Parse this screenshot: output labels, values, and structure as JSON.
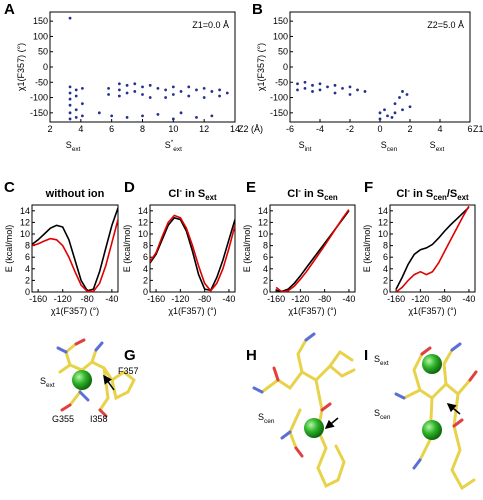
{
  "chart_data": [
    {
      "type": "scatter",
      "label": "A",
      "annotation": "Z1=0.0 Å",
      "xlabel": "Z2 (Å)",
      "ylabel": "χ1(F357) (°)",
      "xlim": [
        2,
        14
      ],
      "xticks": [
        2,
        4,
        6,
        8,
        10,
        12,
        14
      ],
      "ylim": [
        -180,
        180
      ],
      "yticks": [
        -150,
        -100,
        -50,
        0,
        50,
        100,
        150
      ],
      "color": "#23318f",
      "region_labels": [
        {
          "value": 3.5,
          "text": [
            {
              "text": "S"
            },
            {
              "text": "ext",
              "script": "sub"
            }
          ]
        },
        {
          "value": 10,
          "text": [
            {
              "text": "S"
            },
            {
              "text": "*",
              "script": "sup"
            },
            {
              "text": "ext",
              "script": "sub"
            }
          ]
        }
      ],
      "x": [
        3.3,
        3.3,
        3.3,
        3.3,
        3.3,
        3.3,
        3.3,
        3.7,
        3.7,
        3.7,
        3.7,
        4.1,
        4.1,
        4.1,
        5.2,
        5.8,
        5.8,
        6.0,
        6.5,
        6.5,
        6.5,
        7.0,
        7.0,
        7.0,
        7.5,
        7.5,
        8.0,
        8.0,
        8.0,
        8.5,
        8.5,
        9.0,
        9.0,
        9.5,
        9.5,
        10.0,
        10.0,
        10.0,
        10.5,
        10.5,
        11.0,
        11.0,
        11.5,
        11.5,
        12.0,
        12.0,
        12.5,
        12.5,
        13.0,
        13.0,
        13.5
      ],
      "y": [
        160,
        -65,
        -85,
        -105,
        -125,
        -150,
        -170,
        -75,
        -95,
        -140,
        -165,
        -70,
        -120,
        -160,
        -150,
        -70,
        -90,
        -160,
        -55,
        -75,
        -95,
        -60,
        -85,
        -165,
        -55,
        -80,
        -65,
        -90,
        -160,
        -60,
        -100,
        -70,
        -155,
        -75,
        -100,
        -65,
        -90,
        -170,
        -80,
        -150,
        -65,
        -95,
        -75,
        -165,
        -70,
        -100,
        -80,
        -160,
        -75,
        -95,
        -85
      ]
    },
    {
      "type": "scatter",
      "label": "B",
      "annotation": "Z2=5.0 Å",
      "xlabel": "Z1 (Å)",
      "ylabel": "χ1(F357) (°)",
      "xlim": [
        -6,
        6
      ],
      "xticks": [
        -6,
        -4,
        -2,
        0,
        2,
        4,
        6
      ],
      "ylim": [
        -180,
        180
      ],
      "yticks": [
        -150,
        -100,
        -50,
        0,
        50,
        100,
        150
      ],
      "color": "#23318f",
      "region_labels": [
        {
          "value": -5,
          "text": [
            {
              "text": "S"
            },
            {
              "text": "int",
              "script": "sub"
            }
          ]
        },
        {
          "value": 0.6,
          "text": [
            {
              "text": "S"
            },
            {
              "text": "cen",
              "script": "sub"
            }
          ]
        },
        {
          "value": 3.8,
          "text": [
            {
              "text": "S"
            },
            {
              "text": "ext",
              "script": "sub"
            }
          ]
        }
      ],
      "x": [
        -5.5,
        -5.5,
        -5,
        -5,
        -4.5,
        -4.5,
        -4,
        -4,
        -3.5,
        -3,
        -3,
        -2.5,
        -2,
        -2,
        -1.5,
        -1,
        0,
        0,
        0.3,
        0.5,
        0.8,
        1,
        1,
        1.3,
        1.5,
        1.5,
        1.8,
        2
      ],
      "y": [
        -55,
        -75,
        -50,
        -70,
        -60,
        -80,
        -55,
        -75,
        -65,
        -60,
        -85,
        -70,
        -65,
        -90,
        -75,
        -80,
        -150,
        -170,
        -140,
        -160,
        -165,
        -120,
        -150,
        -100,
        -80,
        -140,
        -90,
        -130
      ]
    },
    {
      "type": "line",
      "label": "C",
      "title": "without ion",
      "xlabel": "χ1(F357) (°)",
      "ylabel": "E (kcal/mol)",
      "xlim": [
        -170,
        -30
      ],
      "xticks": [
        -160,
        -120,
        -80,
        -40
      ],
      "ylim": [
        0,
        15
      ],
      "yticks": [
        0,
        2,
        4,
        6,
        8,
        10,
        12,
        14
      ],
      "x": [
        -170,
        -160,
        -150,
        -140,
        -130,
        -120,
        -110,
        -100,
        -90,
        -80,
        -70,
        -60,
        -50,
        -40,
        -30
      ],
      "series": [
        {
          "color": "#000000",
          "values": [
            8.2,
            9.0,
            10.0,
            11.0,
            11.5,
            11.2,
            9.0,
            5.5,
            2.0,
            0.2,
            0.5,
            3.5,
            7.5,
            11.5,
            14.5
          ]
        },
        {
          "color": "#e00000",
          "values": [
            8.0,
            8.3,
            8.8,
            9.2,
            9.0,
            8.0,
            6.0,
            3.5,
            1.2,
            0.1,
            0.1,
            1.5,
            4.5,
            8.5,
            12.5
          ]
        }
      ]
    },
    {
      "type": "line",
      "label": "D",
      "title": [
        {
          "text": "Cl"
        },
        {
          "text": "-",
          "script": "sup"
        },
        {
          "text": " in S"
        },
        {
          "text": "ext",
          "script": "sub"
        }
      ],
      "xlabel": "χ1(F357) (°)",
      "ylabel": "E (kcal/mol)",
      "xlim": [
        -170,
        -30
      ],
      "xticks": [
        -160,
        -120,
        -80,
        -40
      ],
      "ylim": [
        0,
        15
      ],
      "yticks": [
        0,
        2,
        4,
        6,
        8,
        10,
        12,
        14
      ],
      "x": [
        -170,
        -160,
        -150,
        -140,
        -130,
        -120,
        -110,
        -100,
        -90,
        -80,
        -70,
        -60,
        -50,
        -40,
        -30
      ],
      "series": [
        {
          "color": "#000000",
          "values": [
            5.0,
            6.5,
            9.0,
            11.5,
            12.8,
            12.5,
            10.5,
            7.0,
            3.0,
            0.5,
            0.3,
            2.5,
            5.5,
            9.0,
            12.5
          ]
        },
        {
          "color": "#e00000",
          "values": [
            5.2,
            6.8,
            9.5,
            12.0,
            13.2,
            12.8,
            11.0,
            8.0,
            4.5,
            1.5,
            0.2,
            1.5,
            4.0,
            7.5,
            11.5
          ]
        }
      ]
    },
    {
      "type": "line",
      "label": "E",
      "title": [
        {
          "text": "Cl"
        },
        {
          "text": "-",
          "script": "sup"
        },
        {
          "text": " in S"
        },
        {
          "text": "cen",
          "script": "sub"
        }
      ],
      "xlabel": "χ1(F357) (°)",
      "ylabel": "E (kcal/mol)",
      "xlim": [
        -170,
        -30
      ],
      "xticks": [
        -160,
        -120,
        -80,
        -40
      ],
      "ylim": [
        0,
        15
      ],
      "yticks": [
        0,
        2,
        4,
        6,
        8,
        10,
        12,
        14
      ],
      "x": [
        -170,
        -160,
        -150,
        -140,
        -130,
        -120,
        -110,
        -100,
        -90,
        -80,
        -70,
        -60,
        -50,
        -40,
        -30
      ],
      "series": [
        {
          "color": "#000000",
          "values": [
            null,
            0.3,
            0.1,
            0.5,
            1.5,
            2.8,
            4.2,
            5.6,
            7.0,
            8.4,
            9.8,
            11.2,
            12.6,
            14.0,
            null
          ]
        },
        {
          "color": "#e00000",
          "values": [
            null,
            0.8,
            0.0,
            0.2,
            1.0,
            2.2,
            3.5,
            5.0,
            6.5,
            8.0,
            9.6,
            11.2,
            12.8,
            14.2,
            null
          ]
        }
      ]
    },
    {
      "type": "line",
      "label": "F",
      "title": [
        {
          "text": "Cl"
        },
        {
          "text": "-",
          "script": "sup"
        },
        {
          "text": " in S"
        },
        {
          "text": "cen",
          "script": "sub"
        },
        {
          "text": "/S"
        },
        {
          "text": "ext",
          "script": "sub"
        }
      ],
      "xlabel": "χ1(F357) (°)",
      "ylabel": "E (kcal/mol)",
      "xlim": [
        -170,
        -30
      ],
      "xticks": [
        -160,
        -120,
        -80,
        -40
      ],
      "ylim": [
        0,
        15
      ],
      "yticks": [
        0,
        2,
        4,
        6,
        8,
        10,
        12,
        14
      ],
      "x": [
        -170,
        -160,
        -150,
        -140,
        -130,
        -120,
        -110,
        -100,
        -90,
        -80,
        -70,
        -60,
        -50,
        -40,
        -30
      ],
      "series": [
        {
          "color": "#000000",
          "values": [
            null,
            0.5,
            2.5,
            4.8,
            6.5,
            7.3,
            7.6,
            8.2,
            9.3,
            10.5,
            11.6,
            12.6,
            13.6,
            14.6,
            null
          ]
        },
        {
          "color": "#e00000",
          "values": [
            null,
            0.0,
            0.8,
            2.0,
            3.0,
            3.5,
            3.0,
            3.5,
            5.0,
            7.0,
            9.0,
            11.0,
            13.0,
            14.8,
            null
          ]
        }
      ]
    }
  ],
  "structures": [
    {
      "label": "G",
      "annotations": [
        [
          {
            "text": "S"
          },
          {
            "text": "ext",
            "script": "sub"
          }
        ],
        "F357",
        "G355",
        "I358"
      ]
    },
    {
      "label": "H",
      "annotations": [
        [
          {
            "text": "S"
          },
          {
            "text": "cen",
            "script": "sub"
          }
        ]
      ]
    },
    {
      "label": "I",
      "annotations": [
        [
          {
            "text": "S"
          },
          {
            "text": "ext",
            "script": "sub"
          }
        ],
        [
          {
            "text": "S"
          },
          {
            "text": "cen",
            "script": "sub"
          }
        ]
      ]
    }
  ]
}
